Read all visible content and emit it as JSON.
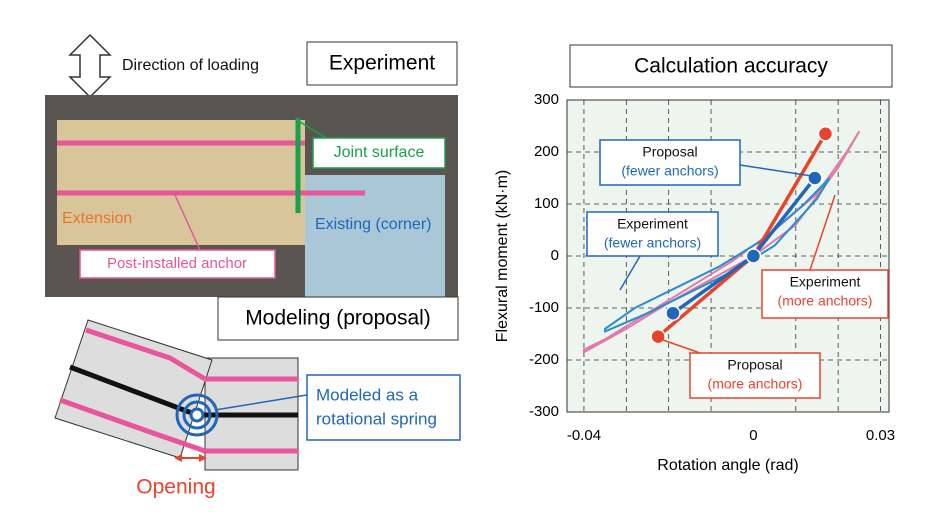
{
  "diagram": {
    "loading": "Direction of loading",
    "experiment": "Experiment",
    "joint": "Joint surface",
    "extension": "Extension",
    "existing": "Existing (corner)",
    "anchor": "Post-installed anchor",
    "modeling": "Modeling (proposal)",
    "spring": [
      "Modeled as a",
      "rotational spring"
    ],
    "opening": "Opening"
  },
  "chart_data": {
    "type": "line",
    "title": "Calculation accuracy",
    "x_label": "Rotation angle (rad)",
    "y_label": "Flexural moment (kN·m)",
    "xlim": [
      -0.044,
      0.032
    ],
    "ylim": [
      -300,
      300
    ],
    "xticks": [
      -0.04,
      0,
      0.03
    ],
    "xgrid": [
      -0.04,
      -0.03,
      -0.02,
      -0.01,
      0.01,
      0.02,
      0.03
    ],
    "yticks": [
      -300,
      -200,
      -100,
      0,
      100,
      200,
      300
    ],
    "grid": true,
    "series": [
      {
        "style": "loop",
        "color": "#e07aa8",
        "x": [
          -0.04,
          -0.03,
          -0.02,
          -0.01,
          0,
          0.01,
          0.02,
          0.025,
          0.022,
          0.015,
          0.005,
          -0.005,
          -0.015,
          -0.025,
          -0.035,
          -0.04
        ],
        "y": [
          -185,
          -140,
          -90,
          -45,
          0,
          60,
          170,
          240,
          200,
          120,
          50,
          -10,
          -60,
          -110,
          -160,
          -180
        ]
      },
      {
        "style": "loop",
        "color": "#2a8ccc",
        "x": [
          -0.035,
          -0.025,
          -0.015,
          -0.005,
          0.005,
          0.015,
          0.018,
          0.012,
          0.002,
          -0.008,
          -0.018,
          -0.028,
          -0.035
        ],
        "y": [
          -145,
          -110,
          -70,
          -30,
          20,
          110,
          150,
          100,
          30,
          -20,
          -60,
          -100,
          -140
        ]
      },
      {
        "style": "proposal",
        "color": "#e8432c",
        "x": [
          -0.0225,
          0,
          0.017
        ],
        "y": [
          -155,
          0,
          235
        ]
      },
      {
        "style": "proposal",
        "color": "#2166b8",
        "x": [
          -0.019,
          0,
          0.0145
        ],
        "y": [
          -110,
          0,
          150
        ]
      }
    ],
    "annotations": [
      {
        "title": "Proposal",
        "subtitle": "(fewer anchors)",
        "color": "#2166b8"
      },
      {
        "title": "Experiment",
        "subtitle": "(fewer anchors)",
        "color": "#2166b8"
      },
      {
        "title": "Experiment",
        "subtitle": "(more anchors)",
        "color": "#e8432c"
      },
      {
        "title": "Proposal",
        "subtitle": "(more anchors)",
        "color": "#e8432c"
      }
    ]
  }
}
